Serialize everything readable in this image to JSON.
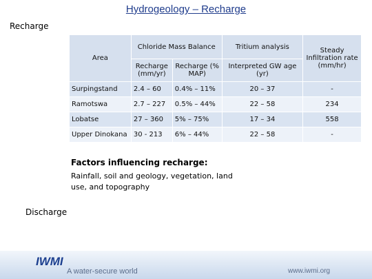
{
  "header": {
    "title": "Hydrogeology – Recharge",
    "subtitle": "Recharge"
  },
  "table": {
    "area_header": "Area",
    "group_headers": [
      "Chloride Mass Balance",
      "Tritium analysis",
      "Steady Infiltration rate (mm/hr)"
    ],
    "sub_headers": [
      "Recharge (mm/yr)",
      "Recharge (% MAP)",
      "Interpreted GW age (yr)"
    ],
    "rows": [
      [
        "Surpingstand",
        "2.4 – 60",
        "0.4% – 11%",
        "20 – 37",
        "-"
      ],
      [
        "Ramotswa",
        "2.7 – 227",
        "0.5% – 44%",
        "22 – 58",
        "234"
      ],
      [
        "Lobatse",
        "27 – 360",
        "5% – 75%",
        "17 – 34",
        "558"
      ],
      [
        "Upper Dinokana",
        "30 - 213",
        "6% – 44%",
        "22 – 58",
        "-"
      ]
    ]
  },
  "factors": {
    "heading": "Factors influencing recharge:",
    "text": "Rainfall, soil and geology, vegetation, land use, and topography"
  },
  "discharge": "Discharge",
  "footer": {
    "logo": "IWMI",
    "tagline": "A water-secure world",
    "url": "www.iwmi.org"
  }
}
